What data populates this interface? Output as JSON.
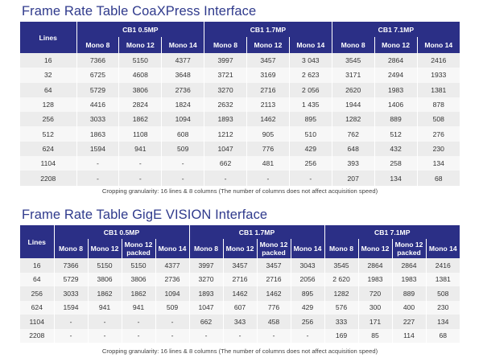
{
  "coaxpress": {
    "title": "Frame Rate Table CoaXPress Interface",
    "lines_header": "Lines",
    "groups": [
      "CB1 0.5MP",
      "CB1 1.7MP",
      "CB1 7.1MP"
    ],
    "sub_headers": [
      "Mono 8",
      "Mono 12",
      "Mono 14",
      "Mono 8",
      "Mono 12",
      "Mono 14",
      "Mono 8",
      "Mono 12",
      "Mono 14"
    ],
    "rows": [
      [
        "16",
        "7366",
        "5150",
        "4377",
        "3997",
        "3457",
        "3 043",
        "3545",
        "2864",
        "2416"
      ],
      [
        "32",
        "6725",
        "4608",
        "3648",
        "3721",
        "3169",
        "2 623",
        "3171",
        "2494",
        "1933"
      ],
      [
        "64",
        "5729",
        "3806",
        "2736",
        "3270",
        "2716",
        "2 056",
        "2620",
        "1983",
        "1381"
      ],
      [
        "128",
        "4416",
        "2824",
        "1824",
        "2632",
        "2113",
        "1 435",
        "1944",
        "1406",
        "878"
      ],
      [
        "256",
        "3033",
        "1862",
        "1094",
        "1893",
        "1462",
        "895",
        "1282",
        "889",
        "508"
      ],
      [
        "512",
        "1863",
        "1108",
        "608",
        "1212",
        "905",
        "510",
        "762",
        "512",
        "276"
      ],
      [
        "624",
        "1594",
        "941",
        "509",
        "1047",
        "776",
        "429",
        "648",
        "432",
        "230"
      ],
      [
        "1104",
        "-",
        "-",
        "-",
        "662",
        "481",
        "256",
        "393",
        "258",
        "134"
      ],
      [
        "2208",
        "-",
        "-",
        "-",
        "-",
        "-",
        "-",
        "207",
        "134",
        "68"
      ]
    ],
    "note": "Cropping granularity: 16 lines & 8 columns (The number of columns does not affect acquisition speed)"
  },
  "gige": {
    "title": "Frame Rate Table GigE VISION Interface",
    "lines_header": "Lines",
    "groups": [
      "CB1 0.5MP",
      "CB1 1.7MP",
      "CB1 7.1MP"
    ],
    "sub_headers": [
      "Mono 8",
      "Mono 12",
      "Mono 12 packed",
      "Mono 14",
      "Mono 8",
      "Mono 12",
      "Mono 12 packed",
      "Mono 14",
      "Mono 8",
      "Mono 12",
      "Mono 12 packed",
      "Mono 14"
    ],
    "rows": [
      [
        "16",
        "7366",
        "5150",
        "5150",
        "4377",
        "3997",
        "3457",
        "3457",
        "3043",
        "3545",
        "2864",
        "2864",
        "2416"
      ],
      [
        "64",
        "5729",
        "3806",
        "3806",
        "2736",
        "3270",
        "2716",
        "2716",
        "2056",
        "2 620",
        "1983",
        "1983",
        "1381"
      ],
      [
        "256",
        "3033",
        "1862",
        "1862",
        "1094",
        "1893",
        "1462",
        "1462",
        "895",
        "1282",
        "720",
        "889",
        "508"
      ],
      [
        "624",
        "1594",
        "941",
        "941",
        "509",
        "1047",
        "607",
        "776",
        "429",
        "576",
        "300",
        "400",
        "230"
      ],
      [
        "1104",
        "-",
        "-",
        "-",
        "-",
        "662",
        "343",
        "458",
        "256",
        "333",
        "171",
        "227",
        "134"
      ],
      [
        "2208",
        "-",
        "-",
        "-",
        "-",
        "-",
        "-",
        "-",
        "-",
        "169",
        "85",
        "114",
        "68"
      ]
    ],
    "note": "Cropping granularity: 16 lines & 8 columns (The number of columns does not affect acquisition speed)"
  }
}
